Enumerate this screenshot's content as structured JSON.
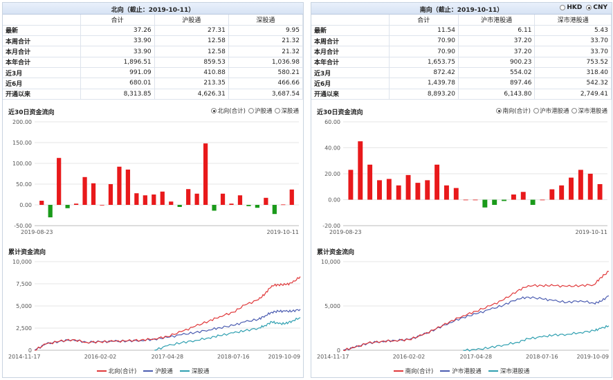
{
  "left": {
    "title": "北向（截止：2019-10-11）",
    "columns": [
      "合计",
      "沪股通",
      "深股通"
    ],
    "rows": [
      {
        "label": "最新",
        "values": [
          "37.26",
          "27.31",
          "9.95"
        ]
      },
      {
        "label": "本周合计",
        "values": [
          "33.90",
          "12.58",
          "21.32"
        ]
      },
      {
        "label": "本月合计",
        "values": [
          "33.90",
          "12.58",
          "21.32"
        ]
      },
      {
        "label": "本年合计",
        "values": [
          "1,896.51",
          "859.53",
          "1,036.98"
        ]
      },
      {
        "label": "近3月",
        "values": [
          "991.09",
          "410.88",
          "580.21"
        ]
      },
      {
        "label": "近6月",
        "values": [
          "680.01",
          "213.35",
          "466.66"
        ]
      },
      {
        "label": "开通以来",
        "values": [
          "8,313.85",
          "4,626.31",
          "3,687.54"
        ]
      }
    ],
    "flow_title": "近30日资金流向",
    "flow_options": [
      "北向(合计)",
      "沪股通",
      "深股通"
    ],
    "flow_selected": 0,
    "cum_title": "累计资金流向",
    "legend": [
      "北向(合计)",
      "沪股通",
      "深股通"
    ]
  },
  "right": {
    "title": "南向（截止：2019-10-11）",
    "currency": [
      "HKD",
      "CNY"
    ],
    "currency_selected": 1,
    "columns": [
      "合计",
      "沪市港股通",
      "深市港股通"
    ],
    "rows": [
      {
        "label": "最新",
        "values": [
          "11.54",
          "6.11",
          "5.43"
        ]
      },
      {
        "label": "本周合计",
        "values": [
          "70.90",
          "37.20",
          "33.70"
        ]
      },
      {
        "label": "本月合计",
        "values": [
          "70.90",
          "37.20",
          "33.70"
        ]
      },
      {
        "label": "本年合计",
        "values": [
          "1,653.75",
          "900.23",
          "753.52"
        ]
      },
      {
        "label": "近3月",
        "values": [
          "872.42",
          "554.02",
          "318.40"
        ]
      },
      {
        "label": "近6月",
        "values": [
          "1,439.78",
          "897.46",
          "542.32"
        ]
      },
      {
        "label": "开通以来",
        "values": [
          "8,893.20",
          "6,143.80",
          "2,749.41"
        ]
      }
    ],
    "flow_title": "近30日资金流向",
    "flow_options": [
      "南向(合计)",
      "沪市港股通",
      "深市港股通"
    ],
    "flow_selected": 0,
    "cum_title": "累计资金流向",
    "legend": [
      "南向(合计)",
      "沪市港股通",
      "深市港股通"
    ]
  },
  "colors": {
    "positive": "#e8191b",
    "negative": "#1a9a1a",
    "total": "#e0383a",
    "sh": "#4a5bb0",
    "sz": "#2e9fb0"
  },
  "chart_data": [
    {
      "type": "bar",
      "name": "north-daily",
      "x_start": "2019-08-23",
      "x_end": "2019-10-11",
      "ylim": [
        -50,
        200
      ],
      "yticks": [
        "-50.00",
        "0.00",
        "50.00",
        "100.00",
        "150.00",
        "200.00"
      ],
      "values": [
        10,
        -30,
        113,
        -8,
        3,
        67,
        52,
        0,
        50,
        92,
        85,
        28,
        23,
        25,
        32,
        8,
        -5,
        38,
        27,
        148,
        -14,
        27,
        3,
        23,
        -3,
        -7,
        17,
        -22,
        1,
        37
      ]
    },
    {
      "type": "bar",
      "name": "south-daily",
      "x_start": "2019-08-23",
      "x_end": "2019-10-11",
      "ylim": [
        -20,
        60
      ],
      "yticks": [
        "-20.00",
        "0.00",
        "20.00",
        "40.00",
        "60.00"
      ],
      "values": [
        23,
        45,
        27,
        15,
        16,
        11,
        19,
        13,
        15,
        27,
        11,
        9,
        0,
        0,
        -6,
        -4,
        -1,
        4,
        6,
        -4,
        0,
        8,
        11,
        17,
        23,
        20,
        12
      ]
    },
    {
      "type": "line",
      "name": "north-cumulative",
      "ylim": [
        0,
        10000
      ],
      "yticks": [
        "0",
        "2,500",
        "5,000",
        "7,500",
        "10,000"
      ],
      "xticks": [
        "2014-11-17",
        "2016-02-02",
        "2017-04-28",
        "2018-07-16",
        "2019-10-09"
      ],
      "x": [
        "2014-11-17",
        "2015-02-01",
        "2015-05-01",
        "2015-08-01",
        "2015-11-01",
        "2016-02-02",
        "2016-05-01",
        "2016-08-01",
        "2016-11-01",
        "2017-02-01",
        "2017-04-28",
        "2017-08-01",
        "2017-11-01",
        "2018-02-01",
        "2018-04-15",
        "2018-07-16",
        "2018-10-01",
        "2019-01-01",
        "2019-02-15",
        "2019-04-01",
        "2019-05-15",
        "2019-07-01",
        "2019-08-15",
        "2019-10-09"
      ],
      "series": [
        {
          "name": "北向(合计)",
          "values": [
            0,
            700,
            1000,
            1200,
            900,
            950,
            1000,
            1050,
            1150,
            1300,
            1550,
            2100,
            2700,
            3300,
            3800,
            4300,
            5100,
            5700,
            6400,
            7300,
            7400,
            7400,
            7600,
            8314
          ]
        },
        {
          "name": "沪股通",
          "values": [
            0,
            700,
            1000,
            1200,
            900,
            950,
            1000,
            1050,
            1100,
            1250,
            1450,
            1750,
            2000,
            2300,
            2550,
            2800,
            3200,
            3500,
            3900,
            4300,
            4400,
            4400,
            4400,
            4626
          ]
        },
        {
          "name": "深股通",
          "values": [
            null,
            null,
            null,
            null,
            null,
            null,
            null,
            null,
            null,
            0,
            500,
            850,
            1100,
            1400,
            1650,
            1950,
            2200,
            2500,
            2800,
            3200,
            3000,
            3000,
            3300,
            3688
          ]
        }
      ]
    },
    {
      "type": "line",
      "name": "south-cumulative",
      "ylim": [
        0,
        10000
      ],
      "yticks": [
        "0",
        "5,000",
        "10,000"
      ],
      "xticks": [
        "2014-11-17",
        "2016-02-02",
        "2017-04-28",
        "2018-07-16",
        "2019-10-09"
      ],
      "x": [
        "2014-11-17",
        "2015-02-01",
        "2015-05-01",
        "2015-08-01",
        "2015-11-01",
        "2016-02-02",
        "2016-05-01",
        "2016-08-01",
        "2016-11-01",
        "2017-02-01",
        "2017-04-28",
        "2017-08-01",
        "2017-11-01",
        "2018-02-01",
        "2018-04-15",
        "2018-07-16",
        "2018-10-01",
        "2019-01-01",
        "2019-04-01",
        "2019-07-01",
        "2019-08-15",
        "2019-10-09"
      ],
      "series": [
        {
          "name": "南向(合计)",
          "values": [
            0,
            300,
            800,
            1000,
            1100,
            1200,
            1700,
            2400,
            3200,
            3900,
            4400,
            5000,
            5700,
            6700,
            7300,
            7300,
            7300,
            7200,
            7300,
            7400,
            8200,
            8893
          ]
        },
        {
          "name": "沪市港股通",
          "values": [
            0,
            300,
            800,
            1000,
            1100,
            1200,
            1700,
            2400,
            3100,
            3700,
            4100,
            4600,
            5100,
            5800,
            6000,
            5800,
            5600,
            5400,
            5600,
            5300,
            5500,
            6144
          ]
        },
        {
          "name": "深市港股通",
          "values": [
            null,
            null,
            null,
            null,
            null,
            null,
            null,
            null,
            null,
            0,
            50,
            300,
            600,
            900,
            1300,
            1500,
            1700,
            1800,
            2000,
            2200,
            2450,
            2749
          ]
        }
      ]
    }
  ]
}
